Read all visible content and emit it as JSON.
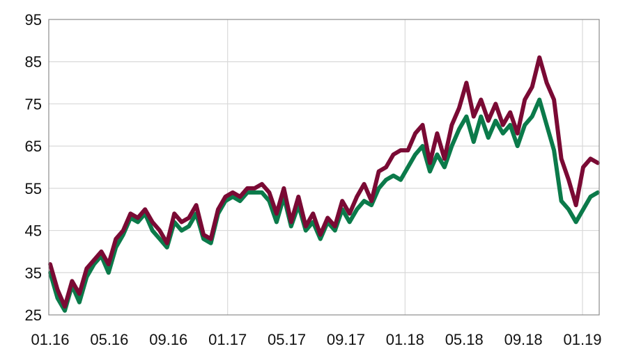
{
  "chart_data": {
    "type": "line",
    "title": "",
    "xlabel": "",
    "ylabel": "",
    "ylim": [
      25,
      95
    ],
    "yticks": [
      "25",
      "35",
      "45",
      "55",
      "65",
      "75",
      "85",
      "95"
    ],
    "xticks": [
      "01.16",
      "05.16",
      "09.16",
      "01.17",
      "05.17",
      "09.17",
      "01.18",
      "05.18",
      "09.18",
      "01.19"
    ],
    "grid": true,
    "legend": "none",
    "x": [
      "01.16",
      "01.16",
      "01.16",
      "02.16",
      "02.16",
      "03.16",
      "03.16",
      "04.16",
      "04.16",
      "05.16",
      "05.16",
      "06.16",
      "06.16",
      "07.16",
      "07.16",
      "08.16",
      "08.16",
      "09.16",
      "09.16",
      "10.16",
      "10.16",
      "11.16",
      "11.16",
      "12.16",
      "12.16",
      "01.17",
      "01.17",
      "02.17",
      "02.17",
      "03.17",
      "03.17",
      "04.17",
      "04.17",
      "05.17",
      "05.17",
      "06.17",
      "06.17",
      "07.17",
      "07.17",
      "08.17",
      "08.17",
      "09.17",
      "09.17",
      "10.17",
      "10.17",
      "11.17",
      "11.17",
      "12.17",
      "12.17",
      "01.18",
      "01.18",
      "02.18",
      "02.18",
      "03.18",
      "03.18",
      "04.18",
      "04.18",
      "05.18",
      "05.18",
      "06.18",
      "06.18",
      "07.18",
      "07.18",
      "08.18",
      "08.18",
      "09.18",
      "09.18",
      "10.18",
      "10.18",
      "11.18",
      "11.18",
      "12.18",
      "12.18",
      "01.19",
      "01.19",
      "01.19"
    ],
    "series": [
      {
        "color": "#7a0a34",
        "values": [
          37,
          31,
          27,
          33,
          30,
          36,
          38,
          40,
          37,
          43,
          45,
          49,
          48,
          50,
          47,
          45,
          42,
          49,
          47,
          48,
          51,
          44,
          43,
          50,
          53,
          54,
          53,
          55,
          55,
          56,
          54,
          49,
          55,
          47,
          53,
          46,
          49,
          44,
          48,
          46,
          52,
          49,
          53,
          56,
          52,
          59,
          60,
          63,
          64,
          64,
          68,
          70,
          61,
          68,
          62,
          70,
          74,
          80,
          72,
          76,
          71,
          75,
          70,
          73,
          68,
          76,
          79,
          86,
          80,
          76,
          62,
          57,
          51,
          60,
          62,
          61
        ]
      },
      {
        "color": "#0b7a4a",
        "values": [
          35,
          29,
          26,
          32,
          28,
          34,
          37,
          39,
          35,
          41,
          44,
          48,
          47,
          49,
          45,
          43,
          41,
          47,
          45,
          46,
          49,
          43,
          42,
          49,
          52,
          53,
          52,
          54,
          54,
          54,
          52,
          47,
          53,
          46,
          51,
          45,
          47,
          43,
          47,
          45,
          50,
          47,
          50,
          52,
          51,
          55,
          57,
          58,
          57,
          60,
          63,
          65,
          59,
          63,
          60,
          65,
          69,
          72,
          66,
          72,
          67,
          71,
          68,
          70,
          65,
          70,
          72,
          76,
          70,
          64,
          52,
          50,
          47,
          50,
          53,
          54
        ]
      }
    ]
  }
}
